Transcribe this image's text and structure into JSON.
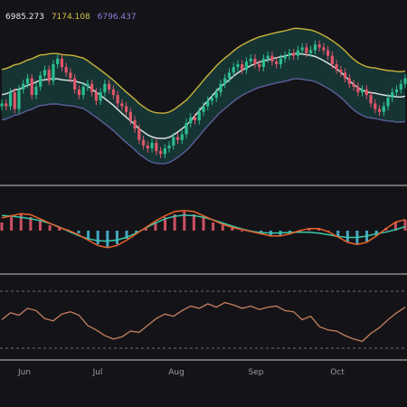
{
  "legend": {
    "mid_value": "6985.273",
    "upper_value": "7174.108",
    "lower_value": "6796.437",
    "colors": {
      "mid": "#e8e8e8",
      "upper": "#d6c24a",
      "lower": "#8f7fd6"
    }
  },
  "chart_data": [
    {
      "type": "candlestick",
      "title": "",
      "overlay": "bollinger-bands",
      "xlabel": "",
      "x_tick_labels": [
        "Jun",
        "Jul",
        "Aug",
        "Sep",
        "Oct"
      ],
      "colors": {
        "up": "#2bbd8e",
        "down": "#e0566a",
        "band_fill": "#17393a",
        "mid": "#d8e0e0",
        "upper": "#c8b43a",
        "lower": "#5a5f9a"
      },
      "close": [
        0.52,
        0.5,
        0.6,
        0.48,
        0.62,
        0.66,
        0.7,
        0.58,
        0.64,
        0.72,
        0.76,
        0.68,
        0.8,
        0.84,
        0.78,
        0.74,
        0.7,
        0.62,
        0.58,
        0.64,
        0.66,
        0.6,
        0.54,
        0.6,
        0.66,
        0.62,
        0.58,
        0.52,
        0.5,
        0.46,
        0.4,
        0.34,
        0.26,
        0.22,
        0.2,
        0.24,
        0.18,
        0.16,
        0.2,
        0.22,
        0.28,
        0.26,
        0.3,
        0.38,
        0.42,
        0.4,
        0.46,
        0.5,
        0.54,
        0.56,
        0.6,
        0.66,
        0.7,
        0.74,
        0.78,
        0.8,
        0.76,
        0.82,
        0.84,
        0.8,
        0.78,
        0.84,
        0.86,
        0.82,
        0.8,
        0.84,
        0.86,
        0.88,
        0.86,
        0.9,
        0.92,
        0.88,
        0.9,
        0.94,
        0.92,
        0.9,
        0.86,
        0.8,
        0.76,
        0.74,
        0.7,
        0.66,
        0.64,
        0.6,
        0.62,
        0.58,
        0.52,
        0.48,
        0.46,
        0.5,
        0.56,
        0.6,
        0.62,
        0.66,
        0.7
      ],
      "bands": {
        "upper_rel": 0.18,
        "lower_rel": -0.18
      }
    },
    {
      "type": "macd",
      "colors": {
        "macd": "#e8622a",
        "signal": "#3ac6a8",
        "hist_up": "#e0566a",
        "hist_down": "#4ab8d8"
      },
      "hist": [
        0.3,
        0.5,
        0.6,
        0.5,
        0.4,
        0.2,
        0.1,
        0.0,
        -0.1,
        -0.3,
        -0.5,
        -0.6,
        -0.5,
        -0.3,
        -0.1,
        0.1,
        0.3,
        0.5,
        0.6,
        0.7,
        0.6,
        0.5,
        0.3,
        0.2,
        0.1,
        0.0,
        0.0,
        -0.1,
        -0.2,
        -0.2,
        -0.1,
        0.0,
        0.1,
        0.1,
        0.0,
        -0.2,
        -0.4,
        -0.5,
        -0.4,
        -0.2,
        0.1,
        0.3,
        0.4
      ]
    },
    {
      "type": "line",
      "name": "",
      "colors": {
        "line": "#c5805e",
        "guide": "#6a6a74"
      },
      "values": [
        0.5,
        0.62,
        0.58,
        0.7,
        0.66,
        0.52,
        0.48,
        0.6,
        0.64,
        0.58,
        0.4,
        0.32,
        0.22,
        0.16,
        0.2,
        0.3,
        0.28,
        0.4,
        0.52,
        0.6,
        0.56,
        0.66,
        0.74,
        0.7,
        0.78,
        0.72,
        0.8,
        0.76,
        0.7,
        0.74,
        0.68,
        0.72,
        0.74,
        0.66,
        0.64,
        0.5,
        0.56,
        0.38,
        0.32,
        0.3,
        0.22,
        0.16,
        0.12,
        0.26,
        0.36,
        0.5,
        0.62,
        0.72
      ]
    }
  ]
}
